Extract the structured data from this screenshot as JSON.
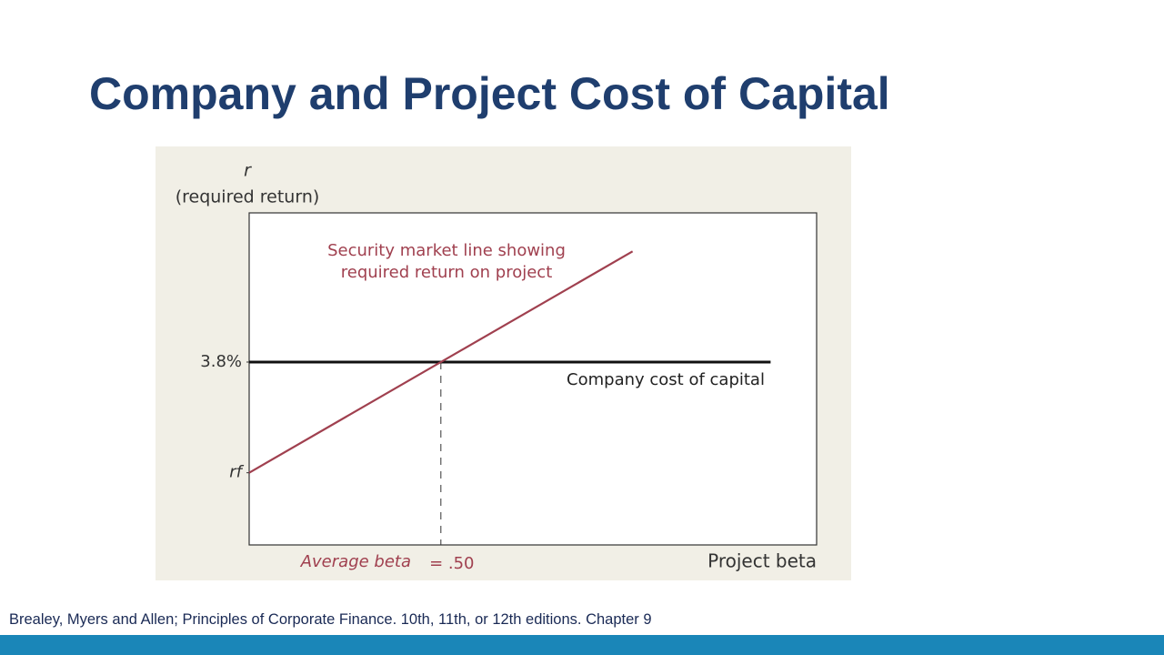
{
  "chart_data": {
    "type": "line",
    "title": "Company and Project Cost of Capital",
    "y_label_symbol": "r",
    "y_label": "(required return)",
    "x_label": "Project beta",
    "x_annotation": "Average beta",
    "source": "Brealey, Myers and Allen;  Principles of Corporate Finance. 10th, 11th, or 12th editions. Chapter 9",
    "xlim": [
      0,
      1.48
    ],
    "ylim": [
      0,
      6.9
    ],
    "xticks": [
      {
        "value": 0.5,
        "label": "= .50"
      }
    ],
    "yticks": [
      {
        "value": 3.8,
        "label": "3.8%"
      },
      {
        "value": 1.5,
        "label": "rf"
      }
    ],
    "series": [
      {
        "name": "Security market line showing required return on project",
        "color": "#a0404f",
        "x": [
          0,
          1.0
        ],
        "values": [
          1.5,
          6.1
        ]
      },
      {
        "name": "Company cost of capital",
        "color": "#111111",
        "x": [
          0,
          1.36
        ],
        "values": [
          3.8,
          3.8
        ]
      }
    ]
  }
}
